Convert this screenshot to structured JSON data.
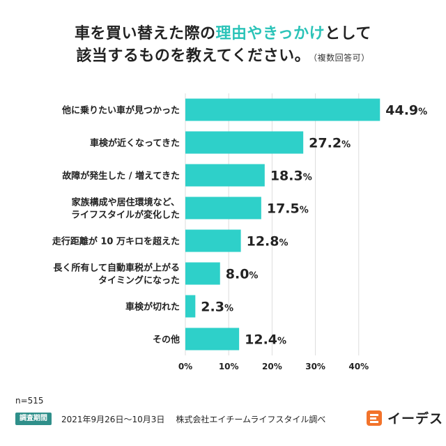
{
  "title": {
    "line1_part1": "車を買い替えた際の",
    "line1_highlight": "理由やきっかけ",
    "line1_part2": "として",
    "line2": "該当するものを教えてください。",
    "line2_note": "（複数回答可）"
  },
  "chart_data": {
    "type": "bar",
    "orientation": "horizontal",
    "categories": [
      [
        "他に乗りたい車が見つかった"
      ],
      [
        "車検が近くなってきた"
      ],
      [
        "故障が発生した / 増えてきた"
      ],
      [
        "家族構成や居住環境など、",
        "ライフスタイルが変化した"
      ],
      [
        "走行距離が 10 万キロを超えた"
      ],
      [
        "長く所有して自動車税が上がる",
        "タイミングになった"
      ],
      [
        "車検が切れた"
      ],
      [
        "その他"
      ]
    ],
    "values": [
      44.9,
      27.2,
      18.3,
      17.5,
      12.8,
      8.0,
      2.3,
      12.4
    ],
    "value_labels": [
      "44.9",
      "27.2",
      "18.3",
      "17.5",
      "12.8",
      "8.0",
      "2.3",
      "12.4"
    ],
    "value_suffix": "%",
    "xlim": [
      0,
      45.5
    ],
    "xticks": [
      0,
      10,
      20,
      30,
      40
    ],
    "xtick_labels": [
      "0%",
      "10%",
      "20%",
      "30%",
      "40%"
    ],
    "grid": true,
    "bar_color": "#2ed0c9",
    "grid_color": "#dcdcdc"
  },
  "footer": {
    "n": "n=515",
    "period_badge": "調査期間",
    "period": "2021年9月26日〜10月3日",
    "source": "株式会社エイチームライフスタイル調べ"
  },
  "logo": {
    "text": "イーデス",
    "icon": "e-mascot-icon",
    "color": "#f2732b"
  }
}
